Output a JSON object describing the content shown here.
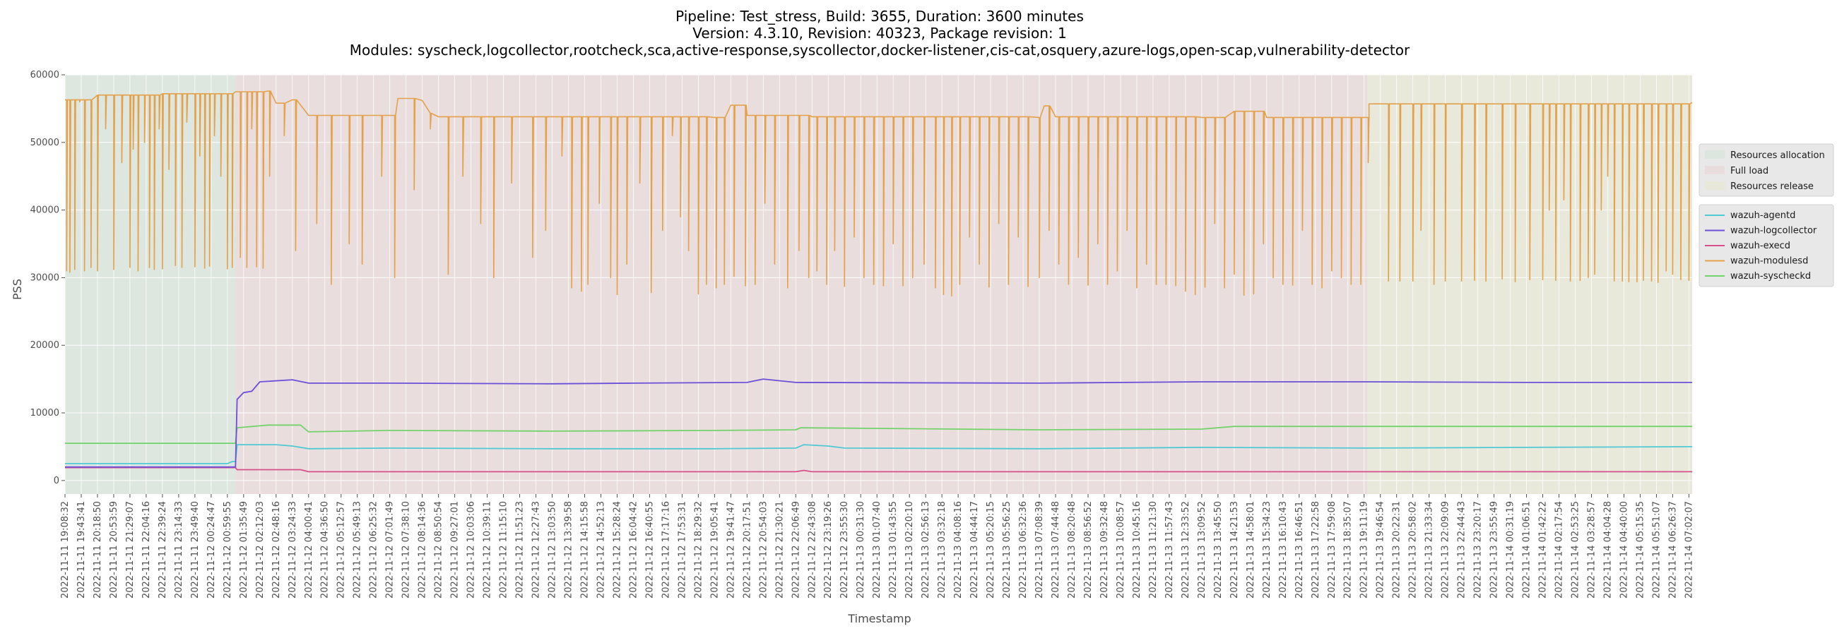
{
  "chart_data": {
    "type": "line",
    "title_lines": [
      "Pipeline: Test_stress, Build: 3655, Duration: 3600 minutes",
      "Version: 4.3.10, Revision: 40323, Package revision: 1",
      "Modules: syscheck,logcollector,rootcheck,sca,active-response,syscollector,docker-listener,cis-cat,osquery,azure-logs,open-scap,vulnerability-detector"
    ],
    "xlabel": "Timestamp",
    "ylabel": "PSS",
    "ylim": [
      -2000,
      60000
    ],
    "yticks": [
      0,
      10000,
      20000,
      30000,
      40000,
      50000,
      60000
    ],
    "grid": true,
    "x_ticks": [
      "2022-11-11 19:08:32",
      "2022-11-11 19:43:41",
      "2022-11-11 20:18:50",
      "2022-11-11 20:53:59",
      "2022-11-11 21:29:07",
      "2022-11-11 22:04:16",
      "2022-11-11 22:39:24",
      "2022-11-11 23:14:33",
      "2022-11-11 23:49:40",
      "2022-11-12 00:24:47",
      "2022-11-12 00:59:55",
      "2022-11-12 01:35:49",
      "2022-11-12 02:12:03",
      "2022-11-12 02:48:16",
      "2022-11-12 03:24:33",
      "2022-11-12 04:00:41",
      "2022-11-12 04:36:50",
      "2022-11-12 05:12:57",
      "2022-11-12 05:49:13",
      "2022-11-12 06:25:32",
      "2022-11-12 07:01:49",
      "2022-11-12 07:38:10",
      "2022-11-12 08:14:36",
      "2022-11-12 08:50:54",
      "2022-11-12 09:27:01",
      "2022-11-12 10:03:06",
      "2022-11-12 10:39:11",
      "2022-11-12 11:15:10",
      "2022-11-12 11:51:23",
      "2022-11-12 12:27:43",
      "2022-11-12 13:03:50",
      "2022-11-12 13:39:58",
      "2022-11-12 14:15:58",
      "2022-11-12 14:52:13",
      "2022-11-12 15:28:24",
      "2022-11-12 16:04:42",
      "2022-11-12 16:40:55",
      "2022-11-12 17:17:16",
      "2022-11-12 17:53:31",
      "2022-11-12 18:29:32",
      "2022-11-12 19:05:41",
      "2022-11-12 19:41:47",
      "2022-11-12 20:17:51",
      "2022-11-12 20:54:03",
      "2022-11-12 21:30:21",
      "2022-11-12 22:06:49",
      "2022-11-12 22:43:08",
      "2022-11-12 23:19:26",
      "2022-11-12 23:55:30",
      "2022-11-13 00:31:30",
      "2022-11-13 01:07:40",
      "2022-11-13 01:43:55",
      "2022-11-13 02:20:10",
      "2022-11-13 02:56:13",
      "2022-11-13 03:32:18",
      "2022-11-13 04:08:16",
      "2022-11-13 04:44:17",
      "2022-11-13 05:20:15",
      "2022-11-13 05:56:25",
      "2022-11-13 06:32:36",
      "2022-11-13 07:08:39",
      "2022-11-13 07:44:48",
      "2022-11-13 08:20:48",
      "2022-11-13 08:56:52",
      "2022-11-13 09:32:48",
      "2022-11-13 10:08:57",
      "2022-11-13 10:45:16",
      "2022-11-13 11:21:30",
      "2022-11-13 11:57:43",
      "2022-11-13 12:33:52",
      "2022-11-13 13:09:52",
      "2022-11-13 13:45:50",
      "2022-11-13 14:21:53",
      "2022-11-13 14:58:01",
      "2022-11-13 15:34:23",
      "2022-11-13 16:10:43",
      "2022-11-13 16:46:51",
      "2022-11-13 17:22:58",
      "2022-11-13 17:59:08",
      "2022-11-13 18:35:07",
      "2022-11-13 19:11:19",
      "2022-11-13 19:46:54",
      "2022-11-13 20:22:31",
      "2022-11-13 20:58:02",
      "2022-11-13 21:33:34",
      "2022-11-13 22:09:09",
      "2022-11-13 22:44:43",
      "2022-11-13 23:20:17",
      "2022-11-13 23:55:49",
      "2022-11-14 00:31:19",
      "2022-11-14 01:06:51",
      "2022-11-14 01:42:22",
      "2022-11-14 02:17:54",
      "2022-11-14 02:53:25",
      "2022-11-14 03:28:57",
      "2022-11-14 04:04:28",
      "2022-11-14 04:40:00",
      "2022-11-14 05:15:35",
      "2022-11-14 05:51:07",
      "2022-11-14 06:26:37",
      "2022-11-14 07:02:07"
    ],
    "phases": [
      {
        "name": "Resources allocation",
        "from_tick": 0,
        "to_tick": 10.5,
        "color": "#dce6de"
      },
      {
        "name": "Full load",
        "from_tick": 10.5,
        "to_tick": 80.2,
        "color": "#e9dcdc"
      },
      {
        "name": "Resources release",
        "from_tick": 80.2,
        "to_tick": 100.2,
        "color": "#e8e8d9"
      }
    ],
    "x_range": [
      0,
      100.2
    ],
    "series": [
      {
        "name": "wazuh-agentd",
        "color": "#4fc9d4",
        "points": [
          [
            0,
            2500
          ],
          [
            10,
            2500
          ],
          [
            10.3,
            2800
          ],
          [
            10.5,
            2800
          ],
          [
            10.6,
            5300
          ],
          [
            13,
            5300
          ],
          [
            14,
            5100
          ],
          [
            15,
            4700
          ],
          [
            20,
            4800
          ],
          [
            30,
            4700
          ],
          [
            40,
            4700
          ],
          [
            45,
            4800
          ],
          [
            45.5,
            5300
          ],
          [
            47,
            5100
          ],
          [
            48,
            4800
          ],
          [
            60,
            4700
          ],
          [
            70,
            4900
          ],
          [
            80.2,
            4800
          ],
          [
            90,
            4900
          ],
          [
            100.2,
            5000
          ]
        ]
      },
      {
        "name": "wazuh-logcollector",
        "color": "#6b4fd8",
        "points": [
          [
            0,
            2000
          ],
          [
            10.5,
            2000
          ],
          [
            10.6,
            12000
          ],
          [
            11,
            13000
          ],
          [
            11.5,
            13200
          ],
          [
            12,
            14600
          ],
          [
            14,
            14900
          ],
          [
            15,
            14400
          ],
          [
            20,
            14400
          ],
          [
            30,
            14300
          ],
          [
            35,
            14400
          ],
          [
            42,
            14500
          ],
          [
            43,
            15000
          ],
          [
            45,
            14500
          ],
          [
            60,
            14400
          ],
          [
            70,
            14600
          ],
          [
            80.2,
            14600
          ],
          [
            90,
            14500
          ],
          [
            100.2,
            14500
          ]
        ]
      },
      {
        "name": "wazuh-execd",
        "color": "#d64f8a",
        "points": [
          [
            0,
            1900
          ],
          [
            10.5,
            1900
          ],
          [
            10.6,
            1600
          ],
          [
            14.5,
            1600
          ],
          [
            15,
            1300
          ],
          [
            45,
            1300
          ],
          [
            45.5,
            1500
          ],
          [
            46,
            1300
          ],
          [
            100.2,
            1300
          ]
        ]
      },
      {
        "name": "wazuh-modulesd",
        "color": "#e3a24a",
        "points": [
          [
            0,
            56300
          ],
          [
            2,
            57000
          ],
          [
            6,
            57200
          ],
          [
            10.5,
            57500
          ],
          [
            12.5,
            57600
          ],
          [
            13,
            55800
          ],
          [
            14,
            56300
          ],
          [
            15,
            54000
          ],
          [
            20,
            54000
          ],
          [
            20.5,
            56500
          ],
          [
            22,
            56200
          ],
          [
            22.5,
            54300
          ],
          [
            23,
            53800
          ],
          [
            30,
            53800
          ],
          [
            35,
            53800
          ],
          [
            40,
            53700
          ],
          [
            41,
            55500
          ],
          [
            42,
            54000
          ],
          [
            46,
            53800
          ],
          [
            60,
            53700
          ],
          [
            60.3,
            55400
          ],
          [
            61,
            53800
          ],
          [
            70,
            53700
          ],
          [
            72,
            54600
          ],
          [
            74,
            53700
          ],
          [
            80.2,
            53700
          ],
          [
            80.3,
            55700
          ],
          [
            100.2,
            55900
          ]
        ]
      },
      {
        "name": "wazuh-syscheckd",
        "color": "#73d36b",
        "points": [
          [
            0,
            5500
          ],
          [
            10.5,
            5500
          ],
          [
            10.6,
            7800
          ],
          [
            12.5,
            8200
          ],
          [
            14.5,
            8200
          ],
          [
            15,
            7200
          ],
          [
            20,
            7400
          ],
          [
            30,
            7300
          ],
          [
            40,
            7400
          ],
          [
            45,
            7500
          ],
          [
            45.3,
            7800
          ],
          [
            60,
            7500
          ],
          [
            70,
            7600
          ],
          [
            72,
            8000
          ],
          [
            80.2,
            8000
          ],
          [
            100.2,
            8000
          ]
        ]
      }
    ],
    "modulesd_dips": [
      [
        0.1,
        31000
      ],
      [
        0.3,
        30800
      ],
      [
        0.6,
        31200
      ],
      [
        0.9,
        56000
      ],
      [
        1.2,
        31000
      ],
      [
        1.6,
        31500
      ],
      [
        2,
        31000
      ],
      [
        2.5,
        52000
      ],
      [
        3,
        31200
      ],
      [
        3.5,
        47000
      ],
      [
        4,
        31500
      ],
      [
        4.2,
        49000
      ],
      [
        4.5,
        31000
      ],
      [
        4.9,
        50000
      ],
      [
        5.2,
        31500
      ],
      [
        5.5,
        31200
      ],
      [
        5.8,
        52000
      ],
      [
        6,
        31300
      ],
      [
        6.4,
        46000
      ],
      [
        6.8,
        31800
      ],
      [
        7.2,
        31500
      ],
      [
        7.5,
        53000
      ],
      [
        8,
        31600
      ],
      [
        8.3,
        48000
      ],
      [
        8.6,
        31400
      ],
      [
        8.9,
        31700
      ],
      [
        9.2,
        51000
      ],
      [
        9.6,
        45000
      ],
      [
        10,
        31300
      ],
      [
        10.3,
        31500
      ],
      [
        10.8,
        33000
      ],
      [
        11.2,
        31500
      ],
      [
        11.5,
        52000
      ],
      [
        11.8,
        31600
      ],
      [
        12.2,
        31400
      ],
      [
        12.6,
        45000
      ],
      [
        13.5,
        51000
      ],
      [
        14.2,
        34000
      ],
      [
        15.5,
        38000
      ],
      [
        16.4,
        29000
      ],
      [
        17.5,
        35000
      ],
      [
        18.3,
        32000
      ],
      [
        19.5,
        45000
      ],
      [
        20.3,
        30000
      ],
      [
        21.5,
        43000
      ],
      [
        22.5,
        52000
      ],
      [
        23.6,
        30500
      ],
      [
        24.5,
        45000
      ],
      [
        25.6,
        38000
      ],
      [
        26.4,
        30000
      ],
      [
        27.5,
        44000
      ],
      [
        28.8,
        33000
      ],
      [
        29.6,
        37000
      ],
      [
        30.6,
        48000
      ],
      [
        31.2,
        28500
      ],
      [
        31.8,
        28000
      ],
      [
        32.2,
        29000
      ],
      [
        32.9,
        41000
      ],
      [
        33.6,
        30000
      ],
      [
        34,
        27500
      ],
      [
        34.6,
        32000
      ],
      [
        35.4,
        44000
      ],
      [
        36.1,
        27800
      ],
      [
        36.8,
        37000
      ],
      [
        37.4,
        51000
      ],
      [
        37.9,
        39000
      ],
      [
        38.4,
        34000
      ],
      [
        39,
        27600
      ],
      [
        39.5,
        29000
      ],
      [
        40.1,
        28500
      ],
      [
        40.6,
        29000
      ],
      [
        41.2,
        30200
      ],
      [
        41.9,
        28800
      ],
      [
        42.5,
        29000
      ],
      [
        43.1,
        41000
      ],
      [
        43.7,
        32000
      ],
      [
        44.5,
        28500
      ],
      [
        45.2,
        34000
      ],
      [
        45.8,
        30000
      ],
      [
        46.3,
        31000
      ],
      [
        46.9,
        29000
      ],
      [
        47.4,
        34000
      ],
      [
        48,
        28700
      ],
      [
        48.6,
        36000
      ],
      [
        49.2,
        30000
      ],
      [
        49.8,
        29000
      ],
      [
        50.4,
        28800
      ],
      [
        51,
        35000
      ],
      [
        51.6,
        28800
      ],
      [
        52.2,
        30000
      ],
      [
        52.9,
        32000
      ],
      [
        53.6,
        28500
      ],
      [
        54.1,
        27500
      ],
      [
        54.6,
        27300
      ],
      [
        55.1,
        29000
      ],
      [
        55.7,
        36000
      ],
      [
        56.3,
        32000
      ],
      [
        56.9,
        28600
      ],
      [
        57.5,
        38000
      ],
      [
        58.1,
        29000
      ],
      [
        58.7,
        36000
      ],
      [
        59.3,
        28700
      ],
      [
        60,
        30000
      ],
      [
        60.6,
        37000
      ],
      [
        61.2,
        32000
      ],
      [
        61.8,
        29000
      ],
      [
        62.4,
        33000
      ],
      [
        63,
        28900
      ],
      [
        63.6,
        35000
      ],
      [
        64.2,
        29000
      ],
      [
        64.8,
        31000
      ],
      [
        65.4,
        37000
      ],
      [
        66,
        28500
      ],
      [
        66.6,
        32000
      ],
      [
        67.2,
        29000
      ],
      [
        67.8,
        29000
      ],
      [
        68.4,
        28800
      ],
      [
        69,
        28000
      ],
      [
        69.6,
        27500
      ],
      [
        70.2,
        28600
      ],
      [
        70.8,
        38000
      ],
      [
        71.4,
        28500
      ],
      [
        72,
        30500
      ],
      [
        72.6,
        27400
      ],
      [
        73.2,
        27600
      ],
      [
        73.8,
        35000
      ],
      [
        74.4,
        30000
      ],
      [
        75,
        29000
      ],
      [
        75.6,
        28900
      ],
      [
        76.2,
        37000
      ],
      [
        76.8,
        29000
      ],
      [
        77.4,
        28500
      ],
      [
        78,
        31000
      ],
      [
        78.6,
        30000
      ],
      [
        79.2,
        29000
      ],
      [
        79.8,
        29000
      ],
      [
        80.25,
        47000
      ],
      [
        81.5,
        29500
      ],
      [
        82.2,
        29500
      ],
      [
        83,
        29500
      ],
      [
        83.5,
        37000
      ],
      [
        84.3,
        29000
      ],
      [
        85,
        29500
      ],
      [
        86,
        29500
      ],
      [
        86.8,
        29600
      ],
      [
        87.5,
        29500
      ],
      [
        88.5,
        29800
      ],
      [
        89.3,
        29400
      ],
      [
        90.2,
        29700
      ],
      [
        91,
        29700
      ],
      [
        91.4,
        40000
      ],
      [
        91.8,
        29600
      ],
      [
        92.3,
        41500
      ],
      [
        92.7,
        29500
      ],
      [
        93.3,
        29600
      ],
      [
        93.8,
        30000
      ],
      [
        94.2,
        30500
      ],
      [
        94.6,
        40000
      ],
      [
        95,
        45000
      ],
      [
        95.4,
        29500
      ],
      [
        95.9,
        29500
      ],
      [
        96.3,
        29400
      ],
      [
        96.8,
        29400
      ],
      [
        97.2,
        29600
      ],
      [
        97.7,
        29500
      ],
      [
        98.1,
        29300
      ],
      [
        98.6,
        31000
      ],
      [
        99,
        30500
      ],
      [
        99.5,
        29700
      ],
      [
        100,
        29600
      ]
    ],
    "legend_phases": [
      "Resources allocation",
      "Full load",
      "Resources release"
    ],
    "legend_series": [
      "wazuh-agentd",
      "wazuh-logcollector",
      "wazuh-execd",
      "wazuh-modulesd",
      "wazuh-syscheckd"
    ],
    "legend_placement": "right",
    "plot_background": "#ebebeb",
    "grid_color": "#ffffff"
  }
}
